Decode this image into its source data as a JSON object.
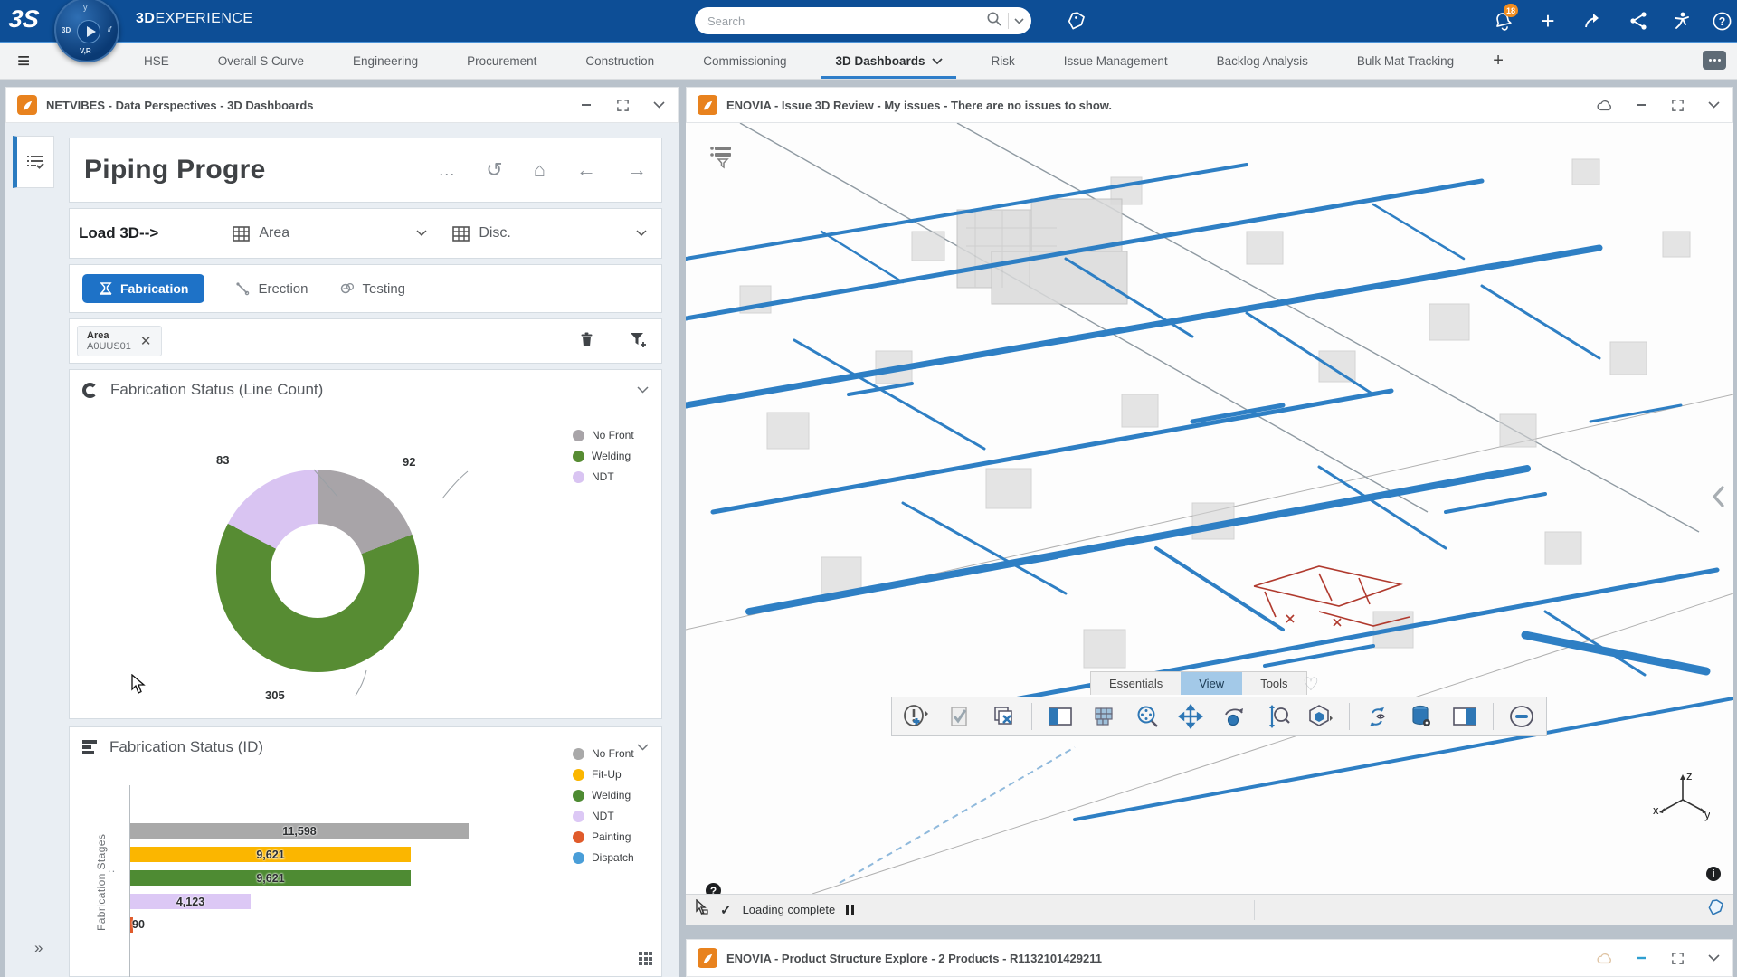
{
  "top_bar": {
    "logo_text": "3S",
    "brand": {
      "bold": "3D",
      "rest": "EXPERIENCE"
    },
    "compass": {
      "left_label": "3D",
      "bottom_label": "V,R"
    },
    "search": {
      "placeholder": "Search"
    },
    "notifications_badge": "18",
    "add_label": "+",
    "help_label": "?"
  },
  "tab_bar": {
    "tabs": [
      {
        "label": "HSE"
      },
      {
        "label": "Overall S Curve"
      },
      {
        "label": "Engineering"
      },
      {
        "label": "Procurement"
      },
      {
        "label": "Construction"
      },
      {
        "label": "Commissioning"
      },
      {
        "label": "3D Dashboards",
        "selected": true,
        "caret": true
      },
      {
        "label": "Risk"
      },
      {
        "label": "Issue Management"
      },
      {
        "label": "Backlog Analysis"
      },
      {
        "label": "Bulk Mat Tracking"
      }
    ],
    "add_tab_label": "+"
  },
  "netvibes_panel": {
    "header_title": "NETVIBES - Data Perspectives - 3D Dashboards",
    "page_title": "Piping Progre",
    "more_label": "...",
    "load_3d_label": "Load 3D--&gt;",
    "load_3d_text": "Load 3D-->",
    "area_dropdown_label": "Area",
    "disc_dropdown_label": "Disc.",
    "stage_tabs": [
      {
        "label": "Fabrication",
        "selected": true
      },
      {
        "label": "Erection"
      },
      {
        "label": "Testing"
      }
    ],
    "filter_chip": {
      "label": "Area",
      "value": "A0UUS01"
    },
    "expand_more_label": "»"
  },
  "chart_data": [
    {
      "type": "pie",
      "subtype": "donut",
      "title": "Fabrication Status (Line Count)",
      "total": 480,
      "series": [
        {
          "label": "No Front",
          "value": 92,
          "color": "#a8a4a8"
        },
        {
          "label": "Welding",
          "value": 305,
          "color": "#578c33"
        },
        {
          "label": "NDT",
          "value": 83,
          "color": "#d9c4f2"
        }
      ],
      "value_labels": [
        "92",
        "305",
        "83"
      ],
      "legend_position": "right"
    },
    {
      "type": "bar",
      "orientation": "horizontal",
      "title": "Fabrication Status (ID)",
      "ylabel": "Fabrication Stages",
      "axis_dots": "..",
      "xlim": [
        0,
        12000
      ],
      "bars": [
        {
          "label": "No Front",
          "value": 11598,
          "value_label": "11,598",
          "color": "#a9a9a9"
        },
        {
          "label": "Fit-Up",
          "value": 9621,
          "value_label": "9,621",
          "color": "#fbb600"
        },
        {
          "label": "Welding",
          "value": 9621,
          "value_label": "9,621",
          "color": "#4e8b33"
        },
        {
          "label": "NDT",
          "value": 4123,
          "value_label": "4,123",
          "color": "#dcc8f5"
        },
        {
          "label": "Painting",
          "value": 90,
          "value_label": "90",
          "color": "#e05b2b"
        }
      ],
      "legend": [
        {
          "label": "No Front",
          "color": "#a9a9a9"
        },
        {
          "label": "Fit-Up",
          "color": "#fbb600"
        },
        {
          "label": "Welding",
          "color": "#4e8b33"
        },
        {
          "label": "NDT",
          "color": "#dcc8f5"
        },
        {
          "label": "Painting",
          "color": "#e05b2b"
        },
        {
          "label": "Dispatch",
          "color": "#4a9ed8"
        }
      ],
      "legend_position": "right"
    }
  ],
  "issue_panel": {
    "header_title": "ENOVIA - Issue 3D Review - My issues - There are no issues to show.",
    "toolbar_tabs": [
      {
        "label": "Essentials"
      },
      {
        "label": "View",
        "selected": true
      },
      {
        "label": "Tools"
      }
    ],
    "status_text": "Loading complete",
    "help_label": "?",
    "info_label": "i",
    "triad": {
      "x": "x",
      "y": "y",
      "z": "z"
    }
  },
  "structure_panel": {
    "header_title": "ENOVIA - Product Structure Explore - 2 Products - R1132101429211"
  }
}
